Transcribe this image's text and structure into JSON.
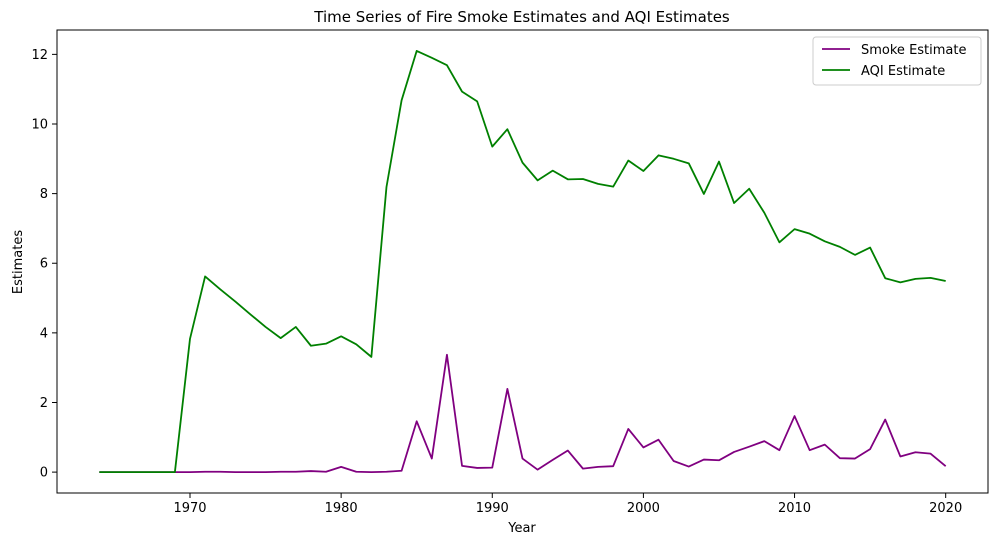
{
  "chart_data": {
    "type": "line",
    "title": "Time Series of Fire Smoke Estimates and AQI Estimates",
    "xlabel": "Year",
    "ylabel": "Estimates",
    "xlim": [
      1961.2,
      2022.8
    ],
    "ylim": [
      -0.6,
      12.7
    ],
    "x_ticks": [
      1970,
      1980,
      1990,
      2000,
      2010,
      2020
    ],
    "y_ticks": [
      0,
      2,
      4,
      6,
      8,
      10,
      12
    ],
    "x_tick_labels": [
      "1970",
      "1980",
      "1990",
      "2000",
      "2010",
      "2020"
    ],
    "y_tick_labels": [
      "0",
      "2",
      "4",
      "6",
      "8",
      "10",
      "12"
    ],
    "grid": false,
    "legend_position": "top-right",
    "x": [
      1964,
      1965,
      1966,
      1967,
      1968,
      1969,
      1970,
      1971,
      1972,
      1973,
      1974,
      1975,
      1976,
      1977,
      1978,
      1979,
      1980,
      1981,
      1982,
      1983,
      1984,
      1985,
      1986,
      1987,
      1988,
      1989,
      1990,
      1991,
      1992,
      1993,
      1994,
      1995,
      1996,
      1997,
      1998,
      1999,
      2000,
      2001,
      2002,
      2003,
      2004,
      2005,
      2006,
      2007,
      2008,
      2009,
      2010,
      2011,
      2012,
      2013,
      2014,
      2015,
      2016,
      2017,
      2018,
      2019,
      2020
    ],
    "series": [
      {
        "name": "Smoke Estimate",
        "color": "#800080",
        "values": [
          0.0,
          0.0,
          0.0,
          0.0,
          0.0,
          0.0,
          0.0,
          0.01,
          0.01,
          0.0,
          0.0,
          0.0,
          0.01,
          0.01,
          0.03,
          0.01,
          0.15,
          0.01,
          0.0,
          0.01,
          0.04,
          1.46,
          0.39,
          3.37,
          0.18,
          0.12,
          0.13,
          2.39,
          0.39,
          0.07,
          0.35,
          0.62,
          0.1,
          0.15,
          0.17,
          1.24,
          0.71,
          0.93,
          0.32,
          0.16,
          0.36,
          0.34,
          0.58,
          0.73,
          0.89,
          0.63,
          1.61,
          0.63,
          0.79,
          0.4,
          0.39,
          0.66,
          1.51,
          0.45,
          0.57,
          0.53,
          0.17
        ]
      },
      {
        "name": "AQI Estimate",
        "color": "#008000",
        "values": [
          0.0,
          0.0,
          0.0,
          0.0,
          0.0,
          0.0,
          3.83,
          5.62,
          5.25,
          4.9,
          4.53,
          4.17,
          3.85,
          4.17,
          3.63,
          3.69,
          3.9,
          3.67,
          3.31,
          8.19,
          10.68,
          12.1,
          11.9,
          11.69,
          10.93,
          10.65,
          9.35,
          9.85,
          8.89,
          8.38,
          8.66,
          8.41,
          8.42,
          8.28,
          8.2,
          8.95,
          8.65,
          9.1,
          9.0,
          8.87,
          7.99,
          8.92,
          7.73,
          8.14,
          7.45,
          6.6,
          6.98,
          6.85,
          6.63,
          6.47,
          6.24,
          6.45,
          5.57,
          5.45,
          5.55,
          5.58,
          5.49
        ]
      }
    ]
  }
}
